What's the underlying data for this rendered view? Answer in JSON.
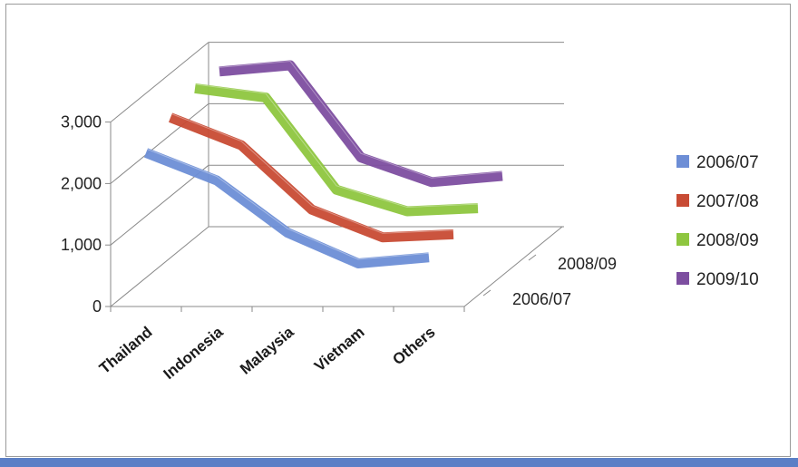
{
  "chart_data": {
    "type": "line",
    "categories": [
      "Thailand",
      "Indonesia",
      "Malaysia",
      "Vietnam",
      "Others"
    ],
    "series": [
      {
        "name": "2006/07",
        "values": [
          2500,
          2050,
          1200,
          700,
          800
        ],
        "color": "#6d8ed6"
      },
      {
        "name": "2007/08",
        "values": [
          2750,
          2300,
          1250,
          800,
          850
        ],
        "color": "#c84b34"
      },
      {
        "name": "2008/09",
        "values": [
          2900,
          2750,
          1250,
          900,
          950
        ],
        "color": "#8ec63f"
      },
      {
        "name": "2009/10",
        "values": [
          2850,
          2950,
          1450,
          1050,
          1150
        ],
        "color": "#7d4ea0"
      }
    ],
    "y_ticks": [
      "0",
      "1,000",
      "2,000",
      "3,000"
    ],
    "ylim": [
      0,
      3000
    ],
    "depth_labels": [
      "2006/07",
      "2008/09"
    ],
    "legend": [
      "2006/07",
      "2007/08",
      "2008/09",
      "2009/10"
    ],
    "legend_position": "right",
    "grid": true,
    "projection": "3d"
  }
}
